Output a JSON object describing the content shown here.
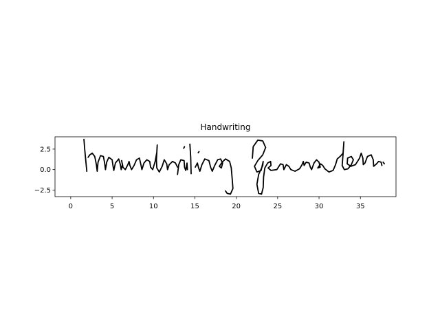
{
  "chart_data": {
    "type": "line",
    "title": "Handwriting",
    "xlabel": "",
    "ylabel": "",
    "xlim": [
      -1.9,
      39.3
    ],
    "ylim": [
      -3.3,
      4.0
    ],
    "x_ticks": [
      0,
      5,
      10,
      15,
      20,
      25,
      30,
      35
    ],
    "x_tick_labels": [
      "0",
      "5",
      "10",
      "15",
      "20",
      "25",
      "30",
      "35"
    ],
    "y_ticks": [
      2.5,
      0.0,
      -2.5
    ],
    "y_tick_labels": [
      "2.5",
      "0.0",
      "−2.5"
    ],
    "grid": false,
    "line_color": "#000000",
    "rendered_text": "Handwriting Generation",
    "strokes": [
      [
        [
          1.6,
          3.7
        ],
        [
          1.7,
          2.4
        ],
        [
          1.85,
          0.8
        ],
        [
          1.95,
          -0.2
        ]
      ],
      [
        [
          2.1,
          1.5
        ],
        [
          2.3,
          1.8
        ],
        [
          2.6,
          2.0
        ],
        [
          2.9,
          1.6
        ],
        [
          3.1,
          0.6
        ],
        [
          3.2,
          -0.2
        ],
        [
          3.3,
          0.9
        ],
        [
          3.6,
          1.7
        ],
        [
          3.95,
          1.6
        ],
        [
          4.1,
          0.8
        ],
        [
          4.2,
          0.0
        ],
        [
          4.35,
          0.9
        ],
        [
          4.6,
          1.5
        ],
        [
          5.0,
          1.2
        ],
        [
          5.1,
          0.5
        ],
        [
          5.2,
          -0.1
        ],
        [
          5.4,
          0.8
        ],
        [
          5.8,
          1.3
        ],
        [
          6.0,
          0.6
        ],
        [
          6.1,
          0.0
        ],
        [
          6.25,
          0.6
        ]
      ],
      [
        [
          6.3,
          0.4
        ],
        [
          6.15,
          1.1
        ],
        [
          6.3,
          0.3
        ],
        [
          6.6,
          0.0
        ],
        [
          6.95,
          0.7
        ],
        [
          7.05,
          1.0
        ],
        [
          7.15,
          0.5
        ],
        [
          7.35,
          0.0
        ],
        [
          7.65,
          0.5
        ],
        [
          7.95,
          1.2
        ],
        [
          8.3,
          1.4
        ],
        [
          8.5,
          0.5
        ],
        [
          8.6,
          0.0
        ],
        [
          8.85,
          0.8
        ],
        [
          9.2,
          1.2
        ],
        [
          9.55,
          1.0
        ],
        [
          9.65,
          0.3
        ],
        [
          9.9,
          0.0
        ],
        [
          10.2,
          1.0
        ],
        [
          10.4,
          2.1
        ],
        [
          10.45,
          3.0
        ],
        [
          10.35,
          1.2
        ],
        [
          10.4,
          0.2
        ],
        [
          10.7,
          -0.3
        ],
        [
          11.05,
          0.4
        ],
        [
          11.3,
          1.2
        ],
        [
          11.6,
          0.7
        ],
        [
          11.7,
          0.0
        ],
        [
          11.9,
          0.6
        ],
        [
          12.3,
          1.0
        ],
        [
          12.65,
          0.8
        ],
        [
          12.9,
          0.3
        ]
      ],
      [
        [
          12.9,
          -0.6
        ],
        [
          13.05,
          0.6
        ],
        [
          13.3,
          1.2
        ],
        [
          13.7,
          1.1
        ],
        [
          13.75,
          0.3
        ],
        [
          13.9,
          -0.1
        ],
        [
          14.05,
          0.8
        ],
        [
          14.1,
          0.0
        ]
      ],
      [
        [
          13.65,
          2.6
        ],
        [
          13.75,
          2.8
        ]
      ],
      [
        [
          14.4,
          3.1
        ],
        [
          14.5,
          1.5
        ],
        [
          14.55,
          -0.5
        ]
      ],
      [
        [
          15.4,
          2.05
        ],
        [
          15.5,
          2.2
        ]
      ],
      [
        [
          15.05,
          0.3
        ],
        [
          15.3,
          0.8
        ],
        [
          15.45,
          0.2
        ],
        [
          15.6,
          -0.2
        ],
        [
          15.85,
          0.6
        ],
        [
          16.2,
          1.3
        ],
        [
          16.7,
          1.1
        ],
        [
          16.9,
          0.3
        ],
        [
          17.1,
          -0.2
        ],
        [
          17.4,
          0.5
        ],
        [
          17.75,
          1.2
        ],
        [
          18.1,
          1.3
        ],
        [
          18.35,
          0.8
        ],
        [
          18.2,
          0.2
        ],
        [
          17.95,
          0.4
        ],
        [
          18.3,
          0.9
        ],
        [
          18.7,
          1.3
        ],
        [
          19.2,
          1.0
        ],
        [
          19.4,
          0.2
        ],
        [
          19.5,
          -1.0
        ],
        [
          19.6,
          -2.3
        ],
        [
          19.3,
          -3.0
        ],
        [
          18.9,
          -2.9
        ],
        [
          18.7,
          -2.6
        ]
      ],
      [
        [
          21.95,
          1.4
        ],
        [
          22.05,
          2.8
        ],
        [
          22.6,
          3.6
        ],
        [
          23.2,
          3.5
        ],
        [
          23.55,
          2.7
        ],
        [
          23.2,
          1.8
        ],
        [
          22.6,
          1.1
        ],
        [
          22.2,
          0.4
        ],
        [
          22.5,
          -0.3
        ],
        [
          23.0,
          -0.1
        ],
        [
          23.25,
          1.0
        ],
        [
          23.2,
          0.5
        ],
        [
          22.7,
          -0.6
        ],
        [
          22.5,
          -1.8
        ],
        [
          22.7,
          -2.9
        ],
        [
          23.05,
          -3.0
        ],
        [
          23.25,
          -2.2
        ],
        [
          23.3,
          -0.9
        ],
        [
          23.45,
          0.2
        ],
        [
          23.8,
          0.8
        ],
        [
          24.15,
          1.0
        ],
        [
          24.2,
          0.5
        ],
        [
          23.85,
          0.2
        ],
        [
          24.2,
          -0.1
        ],
        [
          24.9,
          0.0
        ],
        [
          25.35,
          0.7
        ],
        [
          25.65,
          0.6
        ],
        [
          25.75,
          0.0
        ],
        [
          26.05,
          0.6
        ],
        [
          26.35,
          0.4
        ],
        [
          26.6,
          0.0
        ],
        [
          27.1,
          -0.2
        ],
        [
          27.65,
          0.1
        ],
        [
          27.95,
          0.6
        ],
        [
          28.1,
          1.0
        ],
        [
          28.2,
          0.5
        ],
        [
          28.45,
          0.9
        ],
        [
          28.8,
          0.8
        ],
        [
          28.95,
          0.3
        ],
        [
          29.1,
          0.0
        ],
        [
          29.4,
          0.8
        ],
        [
          29.7,
          1.2
        ],
        [
          30.0,
          0.9
        ],
        [
          30.15,
          0.3
        ],
        [
          29.85,
          0.2
        ],
        [
          30.2,
          0.7
        ],
        [
          30.45,
          0.5
        ],
        [
          30.7,
          0.1
        ],
        [
          31.2,
          -0.3
        ],
        [
          31.7,
          -0.1
        ],
        [
          32.0,
          0.6
        ],
        [
          32.2,
          1.3
        ],
        [
          32.55,
          1.6
        ],
        [
          32.9,
          2.0
        ],
        [
          33.0,
          3.4
        ],
        [
          32.9,
          1.9
        ],
        [
          32.8,
          0.5
        ],
        [
          33.05,
          0.0
        ],
        [
          33.5,
          0.1
        ],
        [
          33.9,
          0.6
        ],
        [
          34.15,
          1.2
        ],
        [
          33.9,
          1.6
        ],
        [
          33.45,
          1.4
        ],
        [
          33.4,
          0.7
        ],
        [
          33.85,
          0.4
        ],
        [
          34.4,
          0.6
        ],
        [
          34.9,
          1.4
        ],
        [
          35.1,
          2.0
        ],
        [
          35.3,
          1.4
        ],
        [
          35.35,
          0.6
        ],
        [
          35.55,
          0.8
        ],
        [
          35.85,
          1.6
        ],
        [
          36.3,
          1.8
        ],
        [
          36.55,
          1.2
        ],
        [
          36.6,
          0.4
        ],
        [
          36.95,
          0.7
        ],
        [
          37.2,
          1.0
        ],
        [
          37.5,
          0.9
        ],
        [
          37.6,
          0.5
        ]
      ],
      [
        [
          37.9,
          0.7
        ],
        [
          37.75,
          0.9
        ]
      ]
    ]
  }
}
